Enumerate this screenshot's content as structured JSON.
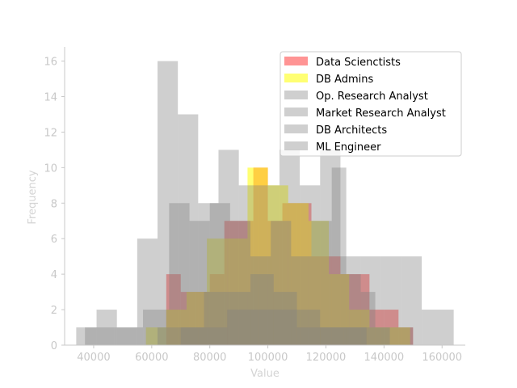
{
  "chart_data": {
    "type": "histogram",
    "xlabel": "Value",
    "ylabel": "Frequency",
    "xlim": [
      30000,
      168000
    ],
    "ylim": [
      0,
      16.8
    ],
    "x_ticks": [
      40000,
      60000,
      80000,
      100000,
      120000,
      140000,
      160000
    ],
    "y_ticks": [
      0,
      2,
      4,
      6,
      8,
      10,
      12,
      14,
      16
    ],
    "x_tick_labels": [
      "40000",
      "60000",
      "80000",
      "100000",
      "120000",
      "140000",
      "160000"
    ],
    "y_tick_labels": [
      "0",
      "2",
      "4",
      "6",
      "8",
      "10",
      "12",
      "14",
      "16"
    ],
    "grid": false,
    "legend_position": "upper-right",
    "series": [
      {
        "name": "Data Scienctists",
        "color": "#ff0000",
        "opacity": 0.42,
        "bins": [
          [
            65000,
            70000,
            4
          ],
          [
            70000,
            75000,
            3
          ],
          [
            75000,
            80000,
            3
          ],
          [
            80000,
            85000,
            4
          ],
          [
            85000,
            90000,
            7
          ],
          [
            90000,
            95000,
            7
          ],
          [
            95000,
            100000,
            10
          ],
          [
            100000,
            105000,
            7
          ],
          [
            105000,
            110000,
            8
          ],
          [
            110000,
            115000,
            8
          ],
          [
            115000,
            120000,
            5
          ],
          [
            120000,
            125000,
            5
          ],
          [
            125000,
            130000,
            4
          ],
          [
            130000,
            135000,
            4
          ],
          [
            135000,
            140000,
            2
          ],
          [
            140000,
            145000,
            2
          ],
          [
            145000,
            150000,
            1
          ]
        ]
      },
      {
        "name": "DB Admins",
        "color": "#ffff00",
        "opacity": 0.55,
        "bins": [
          [
            58000,
            65000,
            1
          ],
          [
            65000,
            72000,
            2
          ],
          [
            72000,
            79000,
            3
          ],
          [
            79000,
            86000,
            6
          ],
          [
            86000,
            93000,
            6
          ],
          [
            93000,
            100000,
            10
          ],
          [
            100000,
            107000,
            9
          ],
          [
            107000,
            114000,
            8
          ],
          [
            114000,
            121000,
            7
          ],
          [
            121000,
            128000,
            4
          ],
          [
            128000,
            135000,
            2
          ],
          [
            135000,
            142000,
            1
          ],
          [
            142000,
            149000,
            1
          ]
        ]
      },
      {
        "name": "Op. Research Analyst",
        "color": "#808080",
        "opacity": 0.38,
        "bins": [
          [
            34000,
            41000,
            1
          ],
          [
            41000,
            48000,
            2
          ],
          [
            48000,
            55000,
            1
          ],
          [
            55000,
            62000,
            6
          ],
          [
            62000,
            69000,
            16
          ],
          [
            69000,
            76000,
            13
          ],
          [
            76000,
            83000,
            8
          ],
          [
            83000,
            90000,
            11
          ],
          [
            90000,
            97000,
            9
          ],
          [
            97000,
            104000,
            9
          ],
          [
            104000,
            111000,
            11
          ],
          [
            111000,
            118000,
            9
          ],
          [
            118000,
            125000,
            11
          ],
          [
            125000,
            132000,
            5
          ],
          [
            132000,
            139000,
            5
          ],
          [
            139000,
            146000,
            5
          ],
          [
            146000,
            153000,
            5
          ],
          [
            153000,
            164000,
            2
          ]
        ]
      },
      {
        "name": "Market Research Analyst",
        "color": "#808080",
        "opacity": 0.38,
        "bins": [
          [
            37000,
            47000,
            1
          ],
          [
            47000,
            57000,
            1
          ],
          [
            57000,
            66000,
            2
          ],
          [
            66000,
            73000,
            8
          ],
          [
            73000,
            80000,
            7
          ],
          [
            80000,
            87000,
            8
          ],
          [
            87000,
            94000,
            7
          ],
          [
            94000,
            101000,
            5
          ],
          [
            101000,
            108000,
            7
          ],
          [
            108000,
            115000,
            5
          ],
          [
            115000,
            122000,
            7
          ],
          [
            122000,
            127000,
            10
          ],
          [
            127000,
            132000,
            4
          ],
          [
            132000,
            137000,
            3
          ],
          [
            137000,
            150000,
            1
          ]
        ]
      },
      {
        "name": "DB Architects",
        "color": "#808080",
        "opacity": 0.38,
        "bins": [
          [
            62000,
            70000,
            1
          ],
          [
            70000,
            78000,
            1
          ],
          [
            78000,
            86000,
            3
          ],
          [
            86000,
            94000,
            3
          ],
          [
            94000,
            102000,
            4
          ],
          [
            102000,
            110000,
            3
          ],
          [
            110000,
            118000,
            2
          ],
          [
            118000,
            126000,
            1
          ],
          [
            126000,
            134000,
            1
          ],
          [
            134000,
            142000,
            1
          ]
        ]
      },
      {
        "name": "ML Engineer",
        "color": "#808080",
        "opacity": 0.38,
        "bins": [
          [
            70000,
            78000,
            1
          ],
          [
            78000,
            86000,
            1
          ],
          [
            86000,
            94000,
            2
          ],
          [
            94000,
            102000,
            2
          ],
          [
            102000,
            110000,
            2
          ],
          [
            110000,
            118000,
            1
          ],
          [
            118000,
            126000,
            1
          ],
          [
            126000,
            134000,
            1
          ]
        ]
      }
    ]
  }
}
